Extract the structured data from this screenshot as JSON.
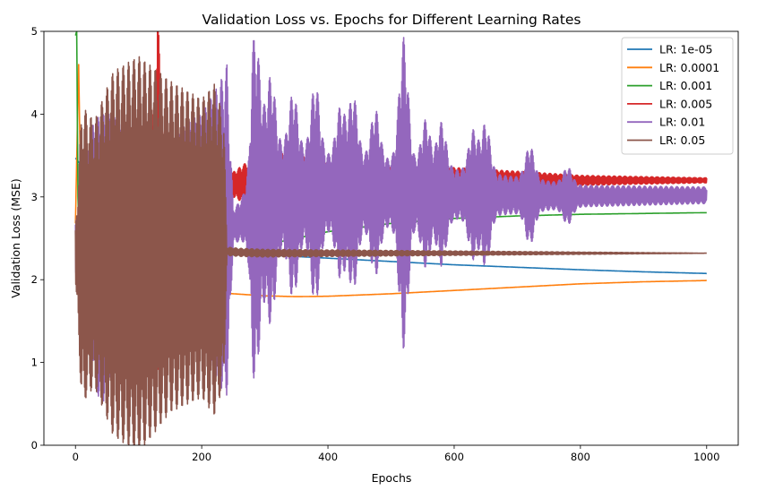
{
  "chart_data": {
    "type": "line",
    "title": "Validation Loss vs. Epochs for Different Learning Rates",
    "xlabel": "Epochs",
    "ylabel": "Validation Loss (MSE)",
    "xlim": [
      -50,
      1050
    ],
    "ylim": [
      0,
      5
    ],
    "xticks": [
      0,
      200,
      400,
      600,
      800,
      1000
    ],
    "yticks": [
      0,
      1,
      2,
      3,
      4,
      5
    ],
    "grid": false,
    "legend_position": "top-right",
    "series": [
      {
        "name": "LR: 1e-05",
        "color": "#1f77b4",
        "points": [
          [
            0,
            3.47
          ],
          [
            20,
            3.28
          ],
          [
            40,
            3.08
          ],
          [
            60,
            2.9
          ],
          [
            80,
            2.77
          ],
          [
            100,
            2.66
          ],
          [
            120,
            2.57
          ],
          [
            140,
            2.5
          ],
          [
            160,
            2.45
          ],
          [
            180,
            2.41
          ],
          [
            200,
            2.38
          ],
          [
            250,
            2.33
          ],
          [
            300,
            2.3
          ],
          [
            350,
            2.28
          ],
          [
            400,
            2.26
          ],
          [
            500,
            2.22
          ],
          [
            600,
            2.18
          ],
          [
            700,
            2.15
          ],
          [
            800,
            2.12
          ],
          [
            900,
            2.095
          ],
          [
            1000,
            2.075
          ]
        ]
      },
      {
        "name": "LR: 0.0001",
        "color": "#ff7f0e",
        "points": [
          [
            0,
            2.68
          ],
          [
            5,
            4.6
          ],
          [
            8,
            3.2
          ],
          [
            12,
            2.4
          ],
          [
            18,
            2.2
          ],
          [
            25,
            2.18
          ],
          [
            30,
            3.18
          ],
          [
            33,
            2.3
          ],
          [
            40,
            2.15
          ],
          [
            60,
            2.07
          ],
          [
            80,
            2.02
          ],
          [
            100,
            1.98
          ],
          [
            150,
            1.91
          ],
          [
            200,
            1.86
          ],
          [
            250,
            1.83
          ],
          [
            300,
            1.805
          ],
          [
            350,
            1.795
          ],
          [
            400,
            1.8
          ],
          [
            500,
            1.83
          ],
          [
            600,
            1.87
          ],
          [
            700,
            1.91
          ],
          [
            800,
            1.95
          ],
          [
            900,
            1.975
          ],
          [
            1000,
            1.99
          ]
        ]
      },
      {
        "name": "LR: 0.001",
        "color": "#2ca02c",
        "points": [
          [
            0,
            4.95
          ],
          [
            2,
            5.0
          ],
          [
            4,
            3.0
          ],
          [
            6,
            2.45
          ],
          [
            10,
            2.38
          ],
          [
            20,
            2.32
          ],
          [
            25,
            2.1
          ],
          [
            30,
            2.02
          ],
          [
            40,
            1.99
          ],
          [
            50,
            1.97
          ],
          [
            60,
            2.0
          ],
          [
            80,
            2.05
          ],
          [
            100,
            2.1
          ],
          [
            150,
            2.14
          ],
          [
            200,
            2.2
          ],
          [
            250,
            2.3
          ],
          [
            300,
            2.42
          ],
          [
            400,
            2.58
          ],
          [
            500,
            2.68
          ],
          [
            600,
            2.74
          ],
          [
            700,
            2.77
          ],
          [
            800,
            2.79
          ],
          [
            900,
            2.8
          ],
          [
            1000,
            2.81
          ]
        ]
      },
      {
        "name": "LR: 0.005",
        "color": "#d62728",
        "points": [
          [
            0,
            2.35
          ],
          [
            15,
            2.3
          ],
          [
            30,
            2.3
          ],
          [
            50,
            2.4
          ],
          [
            80,
            2.65
          ],
          [
            100,
            2.8
          ],
          [
            120,
            2.95
          ],
          [
            150,
            3.05
          ],
          [
            200,
            3.12
          ],
          [
            250,
            3.15
          ],
          [
            300,
            3.18
          ],
          [
            400,
            3.2
          ],
          [
            500,
            3.21
          ],
          [
            600,
            3.215
          ],
          [
            700,
            3.21
          ],
          [
            800,
            3.2
          ],
          [
            900,
            3.2
          ],
          [
            1000,
            3.2
          ]
        ],
        "band": [
          [
            110,
            0.0
          ],
          [
            125,
            1.2
          ],
          [
            130,
            2.3
          ],
          [
            140,
            0.6
          ],
          [
            200,
            0.1
          ],
          [
            250,
            0.15
          ],
          [
            280,
            0.3
          ],
          [
            320,
            0.35
          ],
          [
            360,
            0.3
          ],
          [
            400,
            0.2
          ],
          [
            500,
            0.15
          ],
          [
            600,
            0.14
          ],
          [
            700,
            0.1
          ],
          [
            800,
            0.06
          ],
          [
            1000,
            0.03
          ]
        ]
      },
      {
        "name": "LR: 0.01",
        "color": "#9467bd",
        "points": [
          [
            0,
            2.4
          ],
          [
            10,
            2.2
          ],
          [
            25,
            2.5
          ],
          [
            40,
            2.2
          ],
          [
            60,
            2.5
          ],
          [
            90,
            2.35
          ],
          [
            120,
            2.5
          ],
          [
            150,
            2.45
          ],
          [
            180,
            2.6
          ],
          [
            200,
            2.6
          ],
          [
            230,
            2.55
          ],
          [
            260,
            2.7
          ],
          [
            280,
            2.85
          ],
          [
            320,
            3.0
          ],
          [
            400,
            3.05
          ],
          [
            500,
            3.05
          ],
          [
            600,
            3.03
          ],
          [
            700,
            3.02
          ],
          [
            800,
            3.01
          ],
          [
            1000,
            3.02
          ]
        ],
        "band": [
          [
            0,
            0.3
          ],
          [
            20,
            1.2
          ],
          [
            40,
            1.8
          ],
          [
            60,
            1.5
          ],
          [
            100,
            1.2
          ],
          [
            150,
            1.2
          ],
          [
            200,
            1.4
          ],
          [
            240,
            2.0
          ],
          [
            250,
            0.2
          ],
          [
            275,
            0.3
          ],
          [
            280,
            1.0
          ],
          [
            320,
            0.6
          ],
          [
            400,
            0.45
          ],
          [
            500,
            0.4
          ],
          [
            600,
            0.3
          ],
          [
            700,
            0.22
          ],
          [
            800,
            0.13
          ],
          [
            1000,
            0.1
          ]
        ],
        "bursts": [
          [
            285,
            1.15
          ],
          [
            310,
            0.8
          ],
          [
            345,
            0.7
          ],
          [
            380,
            0.85
          ],
          [
            420,
            0.6
          ],
          [
            440,
            0.75
          ],
          [
            475,
            0.6
          ],
          [
            520,
            1.5
          ],
          [
            555,
            0.55
          ],
          [
            580,
            0.55
          ],
          [
            630,
            0.5
          ],
          [
            650,
            0.6
          ],
          [
            720,
            0.4
          ],
          [
            780,
            0.2
          ]
        ]
      },
      {
        "name": "LR: 0.05",
        "color": "#8c564b",
        "points": [
          [
            0,
            2.3
          ],
          [
            50,
            2.32
          ],
          [
            100,
            2.3
          ],
          [
            150,
            2.4
          ],
          [
            200,
            2.38
          ],
          [
            230,
            2.35
          ],
          [
            260,
            2.33
          ],
          [
            300,
            2.32
          ],
          [
            400,
            2.32
          ],
          [
            500,
            2.32
          ],
          [
            600,
            2.32
          ],
          [
            700,
            2.32
          ],
          [
            800,
            2.32
          ],
          [
            900,
            2.32
          ],
          [
            1000,
            2.32
          ]
        ],
        "band": [
          [
            0,
            0.3
          ],
          [
            10,
            1.8
          ],
          [
            30,
            1.6
          ],
          [
            60,
            2.2
          ],
          [
            100,
            2.4
          ],
          [
            150,
            2.0
          ],
          [
            200,
            1.8
          ],
          [
            220,
            2.0
          ],
          [
            235,
            1.6
          ],
          [
            240,
            0.05
          ],
          [
            1000,
            0.0
          ]
        ]
      }
    ]
  }
}
